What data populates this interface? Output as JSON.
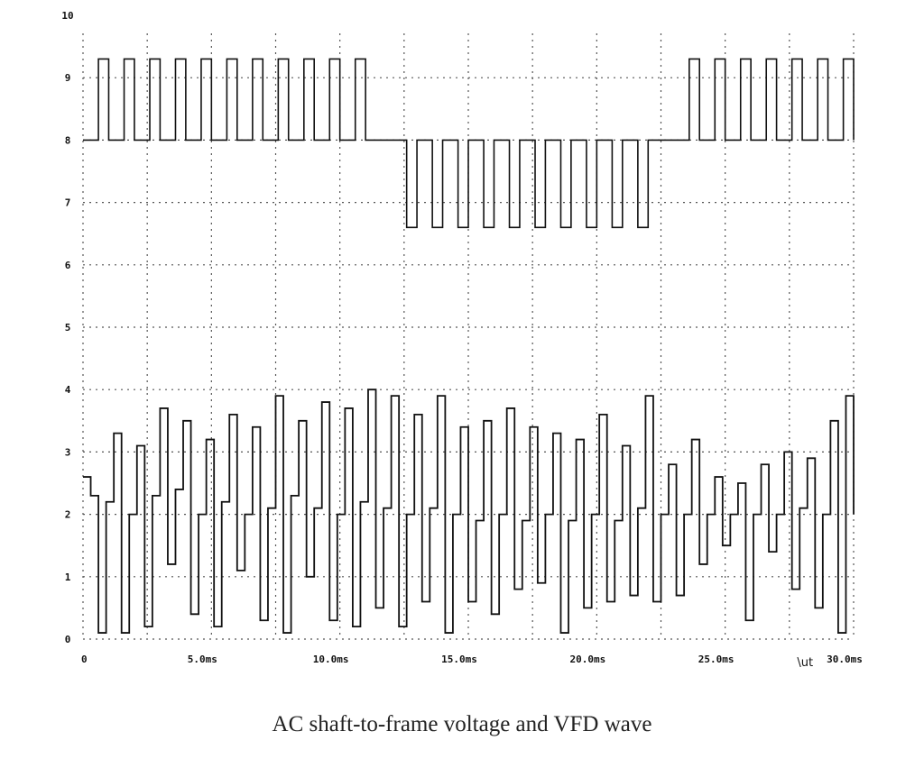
{
  "chart_data": {
    "type": "line",
    "title": "",
    "xlabel": "",
    "ylabel": "",
    "xlim": [
      0,
      30
    ],
    "ylim": [
      0,
      10
    ],
    "x_tick_labels": [
      "0",
      "5.0ms",
      "10.0ms",
      "15.0ms",
      "20.0ms",
      "25.0ms",
      "30.0ms"
    ],
    "x_tick_values": [
      0,
      5,
      10,
      15,
      20,
      25,
      30
    ],
    "y_tick_labels": [
      "0",
      "1",
      "2",
      "3",
      "4",
      "5",
      "6",
      "7",
      "8",
      "9",
      "10"
    ],
    "y_tick_values": [
      0,
      1,
      2,
      3,
      4,
      5,
      6,
      7,
      8,
      9,
      10
    ],
    "grid": true,
    "grid_style": "dotted",
    "annotations": [
      {
        "text": "\\ut",
        "x": 27.8,
        "y": -0.2
      }
    ],
    "series": [
      {
        "style": "square pulse train",
        "color": "#111111",
        "x": [
          0,
          0.6,
          1,
          1.6,
          2,
          2.6,
          3,
          3.6,
          4,
          4.6,
          5,
          5.6,
          6,
          6.6,
          7,
          7.6,
          8,
          8.6,
          9,
          9.6,
          10,
          10.6,
          11,
          11.6,
          12,
          12.6,
          13,
          13.6,
          14,
          14.6,
          15,
          15.6,
          16,
          16.6,
          17,
          17.6,
          18,
          18.6,
          19,
          19.6,
          20,
          20.6,
          21,
          21.6,
          22,
          22.6,
          23,
          23.6,
          24,
          24.6,
          25,
          25.6,
          26,
          26.6,
          27,
          27.6,
          28,
          28.6,
          29,
          29.6,
          30
        ],
        "y": [
          8.0,
          9.3,
          8.0,
          9.3,
          8.0,
          9.3,
          8.0,
          9.3,
          8.0,
          9.3,
          8.0,
          9.3,
          8.0,
          9.3,
          8.0,
          9.3,
          8.0,
          9.3,
          8.0,
          9.3,
          8.0,
          9.3,
          8.0,
          8.0,
          8.0,
          6.6,
          8.0,
          6.6,
          8.0,
          6.6,
          8.0,
          6.6,
          8.0,
          6.6,
          8.0,
          6.6,
          8.0,
          6.6,
          8.0,
          6.6,
          8.0,
          6.6,
          8.0,
          6.6,
          8.0,
          8.0,
          8.0,
          9.3,
          8.0,
          9.3,
          8.0,
          9.3,
          8.0,
          9.3,
          8.0,
          9.3,
          8.0,
          9.3,
          8.0,
          9.3,
          8.0
        ]
      },
      {
        "style": "noisy spikes",
        "color": "#111111",
        "x": [
          0,
          0.3,
          0.6,
          0.9,
          1.2,
          1.5,
          1.8,
          2.1,
          2.4,
          2.7,
          3.0,
          3.3,
          3.6,
          3.9,
          4.2,
          4.5,
          4.8,
          5.1,
          5.4,
          5.7,
          6.0,
          6.3,
          6.6,
          6.9,
          7.2,
          7.5,
          7.8,
          8.1,
          8.4,
          8.7,
          9.0,
          9.3,
          9.6,
          9.9,
          10.2,
          10.5,
          10.8,
          11.1,
          11.4,
          11.7,
          12.0,
          12.3,
          12.6,
          12.9,
          13.2,
          13.5,
          13.8,
          14.1,
          14.4,
          14.7,
          15.0,
          15.3,
          15.6,
          15.9,
          16.2,
          16.5,
          16.8,
          17.1,
          17.4,
          17.7,
          18.0,
          18.3,
          18.6,
          18.9,
          19.2,
          19.5,
          19.8,
          20.1,
          20.4,
          20.7,
          21.0,
          21.3,
          21.6,
          21.9,
          22.2,
          22.5,
          22.8,
          23.1,
          23.4,
          23.7,
          24.0,
          24.3,
          24.6,
          24.9,
          25.2,
          25.5,
          25.8,
          26.1,
          26.4,
          26.7,
          27.0,
          27.3,
          27.6,
          27.9,
          28.2,
          28.5,
          28.8,
          29.1,
          29.4,
          29.7,
          30.0
        ],
        "y": [
          2.6,
          2.3,
          0.1,
          2.2,
          3.3,
          0.1,
          2.0,
          3.1,
          0.2,
          2.3,
          3.7,
          1.2,
          2.4,
          3.5,
          0.4,
          2.0,
          3.2,
          0.2,
          2.2,
          3.6,
          1.1,
          2.0,
          3.4,
          0.3,
          2.1,
          3.9,
          0.1,
          2.3,
          3.5,
          1.0,
          2.1,
          3.8,
          0.3,
          2.0,
          3.7,
          0.2,
          2.2,
          4.0,
          0.5,
          2.1,
          3.9,
          0.2,
          2.0,
          3.6,
          0.6,
          2.1,
          3.9,
          0.1,
          2.0,
          3.4,
          0.6,
          1.9,
          3.5,
          0.4,
          2.0,
          3.7,
          0.8,
          1.9,
          3.4,
          0.9,
          2.0,
          3.3,
          0.1,
          1.9,
          3.2,
          0.5,
          2.0,
          3.6,
          0.6,
          1.9,
          3.1,
          0.7,
          2.1,
          3.9,
          0.6,
          2.0,
          2.8,
          0.7,
          2.0,
          3.2,
          1.2,
          2.0,
          2.6,
          1.5,
          2.0,
          2.5,
          0.3,
          2.0,
          2.8,
          1.4,
          2.0,
          3.0,
          0.8,
          2.1,
          2.9,
          0.5,
          2.0,
          3.5,
          0.1,
          3.9,
          2.0
        ]
      }
    ]
  },
  "caption": "AC shaft-to-frame voltage and VFD wave"
}
